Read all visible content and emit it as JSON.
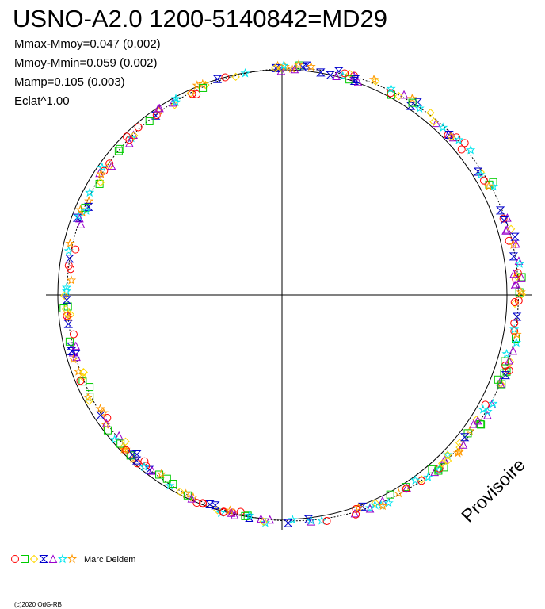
{
  "header": {
    "title": "USNO-A2.0 1200-5140842=MD29",
    "lines": [
      "Mmax-Mmoy=0.047 (0.002)",
      "Mmoy-Mmin=0.059 (0.002)",
      "Mamp=0.105 (0.003)",
      "Eclat^1.00"
    ]
  },
  "watermark": "Provisoire",
  "legend": {
    "observer": "Marc Deldem"
  },
  "footer": "(c)2020 OdG-RB"
}
